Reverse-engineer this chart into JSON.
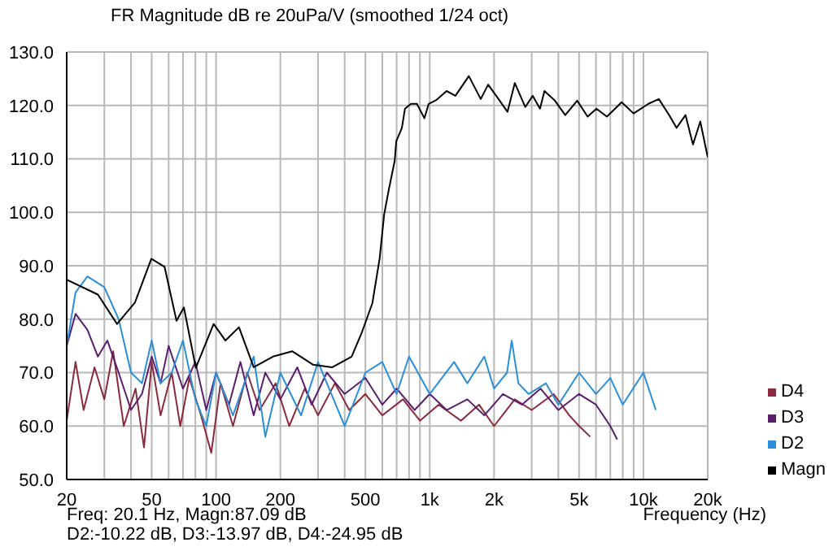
{
  "chart_data": {
    "type": "line",
    "title": "FR Magnitude dB re 20uPa/V (smoothed 1/24 oct)",
    "xlabel": "Frequency (Hz)",
    "annotations": [
      "Freq: 20.1 Hz, Magn:87.09 dB",
      "D2:-10.22 dB, D3:-13.97 dB, D4:-24.95 dB"
    ],
    "log": "x",
    "grid": true,
    "legend": "bottom right",
    "marker": "none",
    "line_style": "solid",
    "xlim": [
      20,
      20000
    ],
    "ylim": [
      50,
      130
    ],
    "xticks": [
      20,
      {
        "value": 30,
        "label": null
      },
      {
        "value": 40,
        "label": null
      },
      50,
      {
        "value": 60,
        "label": null
      },
      {
        "value": 70,
        "label": null
      },
      {
        "value": 80,
        "label": null
      },
      {
        "value": 90,
        "label": null
      },
      100,
      200,
      {
        "value": 300,
        "label": null
      },
      {
        "value": 400,
        "label": null
      },
      500,
      {
        "value": 600,
        "label": null
      },
      {
        "value": 700,
        "label": null
      },
      {
        "value": 800,
        "label": null
      },
      {
        "value": 900,
        "label": null
      },
      {
        "value": 1000,
        "label": "1k"
      },
      {
        "value": 2000,
        "label": "2k"
      },
      {
        "value": 3000,
        "label": null
      },
      {
        "value": 4000,
        "label": null
      },
      {
        "value": 5000,
        "label": "5k"
      },
      {
        "value": 6000,
        "label": null
      },
      {
        "value": 7000,
        "label": null
      },
      {
        "value": 8000,
        "label": null
      },
      {
        "value": 9000,
        "label": null
      },
      {
        "value": 10000,
        "label": "10k"
      },
      {
        "value": 20000,
        "label": "20k"
      }
    ],
    "yticks": [
      {
        "value": 50,
        "label": "50.0"
      },
      {
        "value": 60,
        "label": "60.0"
      },
      {
        "value": 70,
        "label": "70.0"
      },
      {
        "value": 80,
        "label": "80.0"
      },
      {
        "value": 90,
        "label": "90.0"
      },
      {
        "value": 100,
        "label": "100.0"
      },
      {
        "value": 110,
        "label": "110.0"
      },
      {
        "value": 120,
        "label": "120.0"
      },
      {
        "value": 130,
        "label": "130.0"
      }
    ],
    "series": [
      {
        "name": "D4",
        "color": "#8b2a3a",
        "x": [
          20,
          22,
          24,
          27,
          30,
          33,
          37,
          42,
          46,
          50,
          55,
          62,
          68,
          75,
          85,
          95,
          105,
          120,
          140,
          160,
          190,
          220,
          260,
          300,
          360,
          420,
          500,
          600,
          750,
          900,
          1100,
          1400,
          1700,
          2000,
          2500,
          3000,
          3800,
          4500,
          5000,
          5640
        ],
        "values": [
          61,
          72,
          63,
          71,
          65,
          74,
          60,
          67,
          56,
          72,
          62,
          70,
          60,
          69,
          62,
          55,
          68,
          60,
          70,
          63,
          68,
          60,
          67,
          62,
          68,
          63,
          66,
          62,
          65,
          61,
          64,
          61,
          64,
          60,
          65,
          63,
          66,
          62,
          60,
          58
        ]
      },
      {
        "name": "D3",
        "color": "#5a1e6e",
        "x": [
          20,
          22,
          25,
          28,
          31,
          35,
          40,
          45,
          50,
          55,
          60,
          70,
          80,
          90,
          100,
          115,
          130,
          150,
          170,
          200,
          240,
          280,
          330,
          400,
          500,
          600,
          700,
          850,
          1000,
          1200,
          1500,
          1800,
          2200,
          2700,
          3300,
          4000,
          5000,
          6000,
          7000,
          7540
        ],
        "values": [
          75,
          81,
          78,
          73,
          76,
          70,
          63,
          66,
          73,
          68,
          75,
          67,
          72,
          63,
          70,
          64,
          72,
          62,
          70,
          65,
          71,
          64,
          70,
          66,
          69,
          64,
          67,
          63,
          66,
          63,
          65,
          62,
          66,
          64,
          67,
          63,
          66,
          64,
          60,
          57.5
        ]
      },
      {
        "name": "D2",
        "color": "#2a8fd8",
        "x": [
          20,
          22,
          25,
          30,
          35,
          40,
          45,
          50,
          55,
          62,
          70,
          80,
          90,
          100,
          120,
          150,
          170,
          200,
          250,
          300,
          400,
          500,
          600,
          700,
          800,
          1000,
          1300,
          1500,
          1800,
          2000,
          2300,
          2420,
          2600,
          2900,
          3500,
          4000,
          5000,
          6000,
          7000,
          8000,
          10000,
          11430
        ],
        "values": [
          75,
          85,
          88,
          86,
          80,
          70,
          68,
          76,
          68,
          70,
          76,
          65,
          60,
          70,
          62,
          73,
          58,
          70,
          62,
          72,
          60,
          70,
          72,
          66,
          73,
          66,
          72,
          68,
          73,
          67,
          70,
          76,
          68,
          66,
          68,
          64,
          70,
          66,
          69,
          64,
          70,
          63
        ]
      },
      {
        "name": "Magn",
        "color": "#000000",
        "x": [
          20,
          28,
          34.4,
          41.7,
          49.8,
          57.4,
          65.3,
          70.7,
          80.4,
          97.4,
          110.7,
          128,
          150,
          184.6,
          227,
          284,
          350,
          431,
          482,
          539,
          583,
          612,
          643,
          686,
          697,
          741,
          766,
          817,
          871,
          944,
          989,
          1072,
          1199,
          1319,
          1524,
          1733,
          1876,
          2099,
          2311,
          2501,
          2799,
          3034,
          3282,
          3443,
          3853,
          4307,
          4898,
          5483,
          6028,
          6746,
          7911,
          8993,
          10550,
          11810,
          13190,
          14290,
          15740,
          17060,
          18460,
          20000
        ],
        "values": [
          87.4,
          84.6,
          79.1,
          83.1,
          91.3,
          89.8,
          79.7,
          82.2,
          70.9,
          79.1,
          76,
          78.5,
          71,
          73,
          74,
          71.5,
          71,
          73,
          77.6,
          83,
          91.4,
          99.6,
          104.2,
          109.7,
          113.3,
          115.8,
          119.4,
          120.3,
          120.3,
          117.6,
          120.3,
          121,
          122.7,
          121.8,
          125.5,
          121.2,
          123.9,
          121.2,
          118.8,
          124.2,
          119.7,
          121.8,
          119.4,
          122.7,
          120.9,
          118.2,
          120.9,
          117.9,
          119.4,
          117.9,
          120.6,
          118.5,
          120.3,
          121.2,
          118.2,
          115.8,
          118.2,
          112.7,
          117,
          110.3
        ]
      }
    ]
  }
}
